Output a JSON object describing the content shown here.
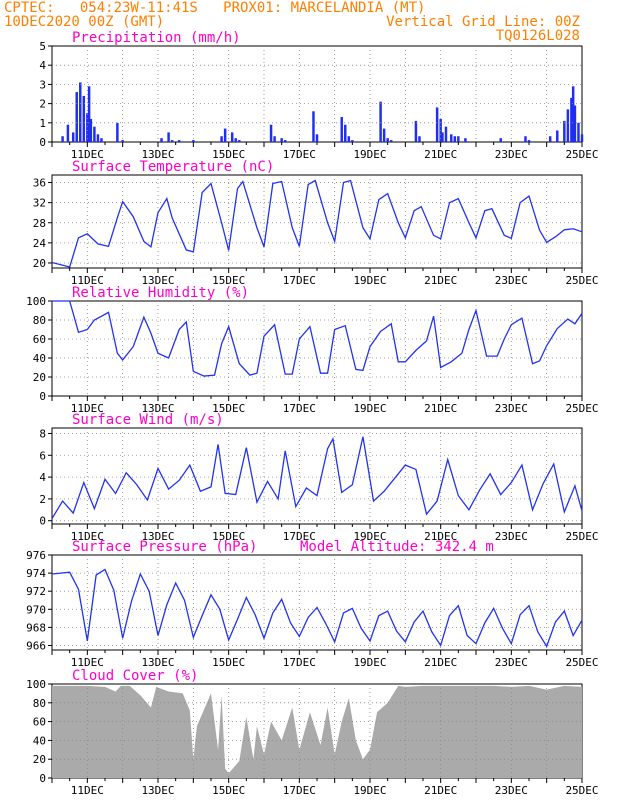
{
  "header": {
    "line1": "CPTEC:   054:23W-11:41S   PROX01: MARCELANDIA (MT)",
    "line2_left": "10DEC2020 00Z (GMT)",
    "line2_right": "Vertical Grid Line: 00Z",
    "line3_right": "TQ0126L028"
  },
  "colors": {
    "header": "#ff7f00",
    "title": "#ff00cc",
    "line": "#2233ee",
    "bar": "#1f2ef0",
    "cloud": "#aaaaaa",
    "grid": "#888888"
  },
  "x_axis": {
    "start": "10DEC2020 00Z",
    "end": "25DEC2020 00Z",
    "tick_labels": [
      "11DEC",
      "13DEC",
      "15DEC",
      "17DEC",
      "19DEC",
      "21DEC",
      "23DEC",
      "25DEC"
    ],
    "tick_days": [
      1,
      3,
      5,
      7,
      9,
      11,
      13,
      15
    ]
  },
  "chart_data": [
    {
      "id": "precip",
      "type": "bar",
      "title": "Precipitation (mm/h)",
      "ylim": [
        0,
        5
      ],
      "yticks": [
        0,
        1,
        2,
        3,
        4,
        5
      ],
      "x": [
        0.3,
        0.45,
        0.6,
        0.7,
        0.8,
        0.9,
        1.0,
        1.05,
        1.1,
        1.2,
        1.3,
        1.4,
        1.85,
        2.0,
        3.1,
        3.3,
        3.4,
        3.6,
        4.0,
        4.8,
        4.9,
        5.1,
        5.2,
        5.3,
        6.2,
        6.3,
        6.5,
        6.6,
        7.4,
        7.5,
        8.2,
        8.3,
        8.4,
        8.5,
        9.3,
        9.4,
        9.5,
        9.6,
        10.3,
        10.4,
        10.9,
        11.0,
        11.05,
        11.15,
        11.3,
        11.4,
        11.5,
        11.7,
        12.7,
        13.4,
        13.5,
        14.1,
        14.3,
        14.5,
        14.6,
        14.7,
        14.75,
        14.8,
        14.9,
        15.0
      ],
      "values": [
        0.3,
        0.9,
        0.5,
        2.6,
        3.1,
        2.4,
        1.5,
        2.9,
        1.2,
        0.8,
        0.4,
        0.2,
        1.0,
        0.1,
        0.2,
        0.5,
        0.1,
        0.1,
        0.1,
        0.3,
        0.7,
        0.5,
        0.2,
        0.1,
        0.9,
        0.3,
        0.2,
        0.1,
        1.6,
        0.4,
        1.3,
        0.9,
        0.3,
        0.1,
        2.1,
        0.7,
        0.2,
        0.1,
        1.1,
        0.3,
        1.8,
        1.2,
        0.5,
        0.8,
        0.4,
        0.3,
        0.3,
        0.2,
        0.2,
        0.3,
        0.1,
        0.3,
        0.6,
        1.1,
        1.7,
        2.3,
        2.9,
        1.9,
        1.0,
        0.4
      ]
    },
    {
      "id": "temp",
      "type": "line",
      "title": "Surface Temperature (nC)",
      "ylim": [
        19,
        37.5
      ],
      "yticks": [
        20,
        24,
        28,
        32,
        36
      ],
      "x": [
        0,
        0.5,
        0.75,
        1.0,
        1.3,
        1.6,
        1.85,
        2.0,
        2.3,
        2.6,
        2.8,
        3.0,
        3.25,
        3.4,
        3.8,
        4.0,
        4.25,
        4.5,
        4.8,
        5.0,
        5.25,
        5.4,
        5.8,
        6.0,
        6.25,
        6.5,
        6.8,
        7.0,
        7.25,
        7.45,
        7.8,
        8.0,
        8.25,
        8.45,
        8.8,
        9.0,
        9.25,
        9.5,
        9.8,
        10.0,
        10.25,
        10.45,
        10.8,
        11.0,
        11.25,
        11.5,
        11.8,
        12.0,
        12.25,
        12.45,
        12.8,
        13.0,
        13.25,
        13.5,
        13.8,
        14.0,
        14.25,
        14.5,
        14.75,
        15.0
      ],
      "values": [
        20.1,
        19.2,
        25,
        25.8,
        23.8,
        23.3,
        29,
        32.2,
        29.2,
        24.3,
        23.2,
        30,
        32.8,
        29,
        22.6,
        22.2,
        34,
        35.8,
        28,
        22.5,
        34.8,
        36.2,
        27,
        23.2,
        35.8,
        36.2,
        27,
        23.3,
        35.6,
        36.4,
        28,
        24.3,
        36,
        36.4,
        27,
        24.8,
        32.6,
        33.8,
        28,
        25,
        30.4,
        31.2,
        25.5,
        24.8,
        32,
        32.8,
        28,
        25,
        30.4,
        30.8,
        25.5,
        24.9,
        32,
        33.3,
        26.5,
        24.1,
        25.2,
        26.6,
        26.8,
        26.2
      ]
    },
    {
      "id": "rh",
      "type": "line",
      "title": "Relative Humidity (%)",
      "ylim": [
        0,
        100
      ],
      "yticks": [
        0,
        20,
        40,
        60,
        80,
        100
      ],
      "x": [
        0,
        0.5,
        0.75,
        1.0,
        1.2,
        1.6,
        1.85,
        2.0,
        2.3,
        2.6,
        2.8,
        3.0,
        3.3,
        3.6,
        3.8,
        4.0,
        4.3,
        4.6,
        4.8,
        5.0,
        5.3,
        5.6,
        5.8,
        6.0,
        6.3,
        6.6,
        6.8,
        7.0,
        7.3,
        7.6,
        7.8,
        8.0,
        8.3,
        8.6,
        8.8,
        9.0,
        9.3,
        9.6,
        9.8,
        10.0,
        10.3,
        10.6,
        10.8,
        11.0,
        11.3,
        11.6,
        11.8,
        12.0,
        12.3,
        12.6,
        12.8,
        13.0,
        13.3,
        13.6,
        13.8,
        14.0,
        14.3,
        14.6,
        14.8,
        15.0
      ],
      "values": [
        100,
        100,
        67,
        70,
        80,
        88,
        45,
        38,
        52,
        83,
        66,
        45,
        40,
        70,
        78,
        26,
        21,
        22,
        55,
        73,
        34,
        22,
        24,
        63,
        75,
        23,
        23,
        60,
        73,
        24,
        24,
        70,
        74,
        28,
        27,
        52,
        68,
        76,
        36,
        36,
        48,
        58,
        84,
        30,
        36,
        45,
        70,
        90,
        42,
        42,
        60,
        75,
        82,
        34,
        37,
        53,
        71,
        81,
        76,
        87
      ]
    },
    {
      "id": "wind",
      "type": "line",
      "title": "Surface Wind (m/s)",
      "ylim": [
        -0.3,
        8.5
      ],
      "yticks": [
        0,
        2,
        4,
        6,
        8
      ],
      "x": [
        0,
        0.3,
        0.6,
        0.9,
        1.2,
        1.5,
        1.8,
        2.1,
        2.4,
        2.7,
        3.0,
        3.3,
        3.6,
        3.9,
        4.2,
        4.5,
        4.7,
        4.9,
        5.2,
        5.5,
        5.8,
        6.1,
        6.4,
        6.6,
        6.9,
        7.2,
        7.5,
        7.8,
        7.95,
        8.2,
        8.5,
        8.8,
        9.1,
        9.4,
        9.7,
        10.0,
        10.3,
        10.6,
        10.9,
        11.2,
        11.5,
        11.8,
        12.1,
        12.4,
        12.7,
        13.0,
        13.3,
        13.6,
        13.9,
        14.2,
        14.5,
        14.8,
        15.0
      ],
      "values": [
        0.2,
        1.8,
        0.7,
        3.5,
        1.1,
        3.8,
        2.5,
        4.4,
        3.3,
        1.9,
        4.8,
        2.9,
        3.7,
        5.1,
        2.7,
        3.1,
        7.0,
        2.5,
        2.4,
        6.7,
        1.7,
        3.6,
        2.0,
        6.4,
        1.3,
        3.0,
        2.3,
        6.6,
        7.5,
        2.6,
        3.3,
        7.7,
        1.8,
        2.7,
        3.9,
        5.1,
        4.7,
        0.6,
        1.8,
        5.6,
        2.3,
        1.0,
        2.8,
        4.3,
        2.4,
        3.5,
        5.1,
        1.0,
        3.4,
        5.2,
        0.8,
        3.2,
        0.9
      ]
    },
    {
      "id": "pres",
      "type": "line",
      "title": "Surface Pressure (hPa)",
      "annotation": "Model Altitude: 342.4 m",
      "ylim": [
        965.5,
        976
      ],
      "yticks": [
        966,
        968,
        970,
        972,
        974,
        976
      ],
      "x": [
        0,
        0.5,
        0.75,
        1.0,
        1.25,
        1.5,
        1.75,
        2.0,
        2.25,
        2.5,
        2.75,
        3.0,
        3.25,
        3.5,
        3.75,
        4.0,
        4.25,
        4.5,
        4.75,
        5.0,
        5.25,
        5.5,
        5.75,
        6.0,
        6.25,
        6.5,
        6.75,
        7.0,
        7.25,
        7.5,
        7.75,
        8.0,
        8.25,
        8.5,
        8.75,
        9.0,
        9.25,
        9.5,
        9.75,
        10.0,
        10.25,
        10.5,
        10.75,
        11.0,
        11.25,
        11.5,
        11.75,
        12.0,
        12.25,
        12.5,
        12.75,
        13.0,
        13.25,
        13.5,
        13.75,
        14.0,
        14.25,
        14.5,
        14.75,
        15.0
      ],
      "values": [
        973.9,
        974.1,
        972.2,
        966.5,
        973.8,
        974.4,
        972.1,
        966.8,
        970.9,
        973.9,
        972,
        967.1,
        970.5,
        972.9,
        971,
        966.9,
        969.3,
        971.6,
        970,
        966.6,
        968.9,
        971.3,
        969.4,
        966.8,
        969.6,
        971.1,
        968.5,
        967,
        969.1,
        970.2,
        968.4,
        966.4,
        969.6,
        970.1,
        967.9,
        966.5,
        969.3,
        969.8,
        967.6,
        966.4,
        968.6,
        969.8,
        967.5,
        966,
        969.3,
        970.4,
        967.1,
        966.2,
        968.5,
        970.1,
        967.9,
        966.2,
        969.4,
        970.4,
        967.5,
        965.9,
        968.6,
        969.8,
        967.1,
        968.8
      ]
    },
    {
      "id": "cloud",
      "type": "area",
      "title": "Cloud Cover (%)",
      "ylim": [
        0,
        100
      ],
      "yticks": [
        0,
        20,
        40,
        60,
        80,
        100
      ],
      "x": [
        0,
        0.5,
        1.0,
        1.5,
        1.8,
        1.95,
        2.2,
        2.5,
        2.8,
        2.95,
        3.3,
        3.7,
        3.9,
        4.0,
        4.1,
        4.5,
        4.7,
        4.8,
        4.9,
        5.0,
        5.3,
        5.5,
        5.7,
        5.8,
        6.0,
        6.2,
        6.5,
        6.8,
        7.0,
        7.3,
        7.6,
        7.8,
        8.0,
        8.2,
        8.4,
        8.6,
        8.8,
        9.0,
        9.2,
        9.5,
        9.8,
        10.0,
        10.5,
        11.0,
        11.5,
        12.0,
        12.5,
        13.0,
        13.5,
        14.0,
        14.5,
        15.0
      ],
      "values": [
        98,
        98,
        98,
        97,
        92,
        98,
        98,
        88,
        75,
        97,
        92,
        90,
        72,
        20,
        55,
        90,
        30,
        88,
        10,
        5,
        18,
        65,
        20,
        55,
        25,
        60,
        40,
        75,
        30,
        70,
        35,
        75,
        25,
        60,
        85,
        40,
        20,
        30,
        70,
        80,
        98,
        97,
        98,
        98,
        98,
        98,
        98,
        97,
        98,
        94,
        98,
        97
      ]
    }
  ]
}
